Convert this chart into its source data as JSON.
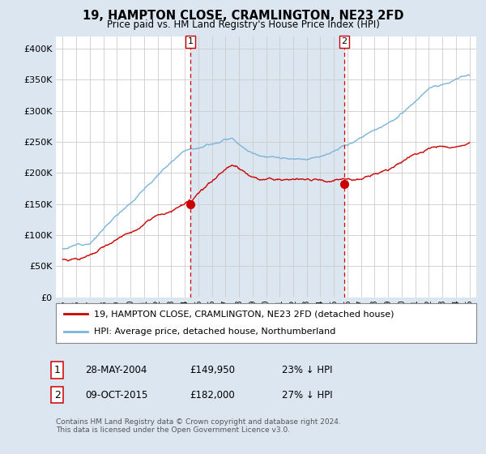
{
  "title": "19, HAMPTON CLOSE, CRAMLINGTON, NE23 2FD",
  "subtitle": "Price paid vs. HM Land Registry's House Price Index (HPI)",
  "outer_bg_color": "#dce6f1",
  "plot_bg_color": "#ffffff",
  "shade_color": "#dce6f1",
  "ylim": [
    0,
    420000
  ],
  "yticks": [
    0,
    50000,
    100000,
    150000,
    200000,
    250000,
    300000,
    350000,
    400000
  ],
  "xlim_left": 1994.5,
  "xlim_right": 2025.5,
  "sale1_year": 2004.41,
  "sale1_price": 149950,
  "sale1_label": "1",
  "sale1_date": "28-MAY-2004",
  "sale1_hpi_diff": "23% ↓ HPI",
  "sale2_year": 2015.77,
  "sale2_price": 182000,
  "sale2_label": "2",
  "sale2_date": "09-OCT-2015",
  "sale2_hpi_diff": "27% ↓ HPI",
  "legend_line1": "19, HAMPTON CLOSE, CRAMLINGTON, NE23 2FD (detached house)",
  "legend_line2": "HPI: Average price, detached house, Northumberland",
  "footer1": "Contains HM Land Registry data © Crown copyright and database right 2024.",
  "footer2": "This data is licensed under the Open Government Licence v3.0.",
  "hpi_color": "#7ab4d8",
  "price_color": "#cc0000",
  "dashed_line_color": "#cc0000",
  "grid_color": "#cccccc"
}
